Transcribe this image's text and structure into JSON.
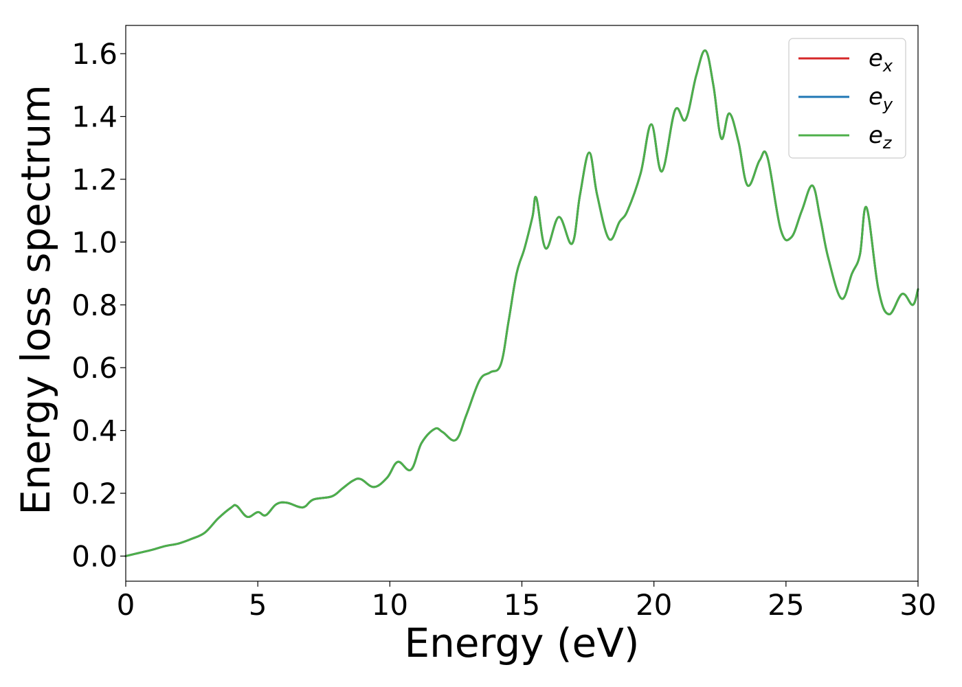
{
  "chart_data": {
    "type": "line",
    "title": "",
    "xlabel": "Energy (eV)",
    "ylabel": "Energy loss spectrum",
    "xlim": [
      0,
      30
    ],
    "ylim": [
      -0.08,
      1.69
    ],
    "xticks": [
      0,
      5,
      10,
      15,
      20,
      25,
      30
    ],
    "xtick_labels": [
      "0",
      "5",
      "10",
      "15",
      "20",
      "25",
      "30"
    ],
    "yticks": [
      0.0,
      0.2,
      0.4,
      0.6,
      0.8,
      1.0,
      1.2,
      1.4,
      1.6
    ],
    "ytick_labels": [
      "0.0",
      "0.2",
      "0.4",
      "0.6",
      "0.8",
      "1.0",
      "1.2",
      "1.4",
      "1.6"
    ],
    "grid": false,
    "legend_position": "top-right",
    "legend": [
      {
        "base": "e",
        "sub": "x",
        "color": "#d62728"
      },
      {
        "base": "e",
        "sub": "y",
        "color": "#1f77b4"
      },
      {
        "base": "e",
        "sub": "z",
        "color": "#4daf4a"
      }
    ],
    "x": [
      0,
      0.5,
      1.0,
      1.5,
      2.0,
      2.5,
      3.0,
      3.5,
      4.0,
      4.2,
      4.6,
      5.0,
      5.3,
      5.7,
      6.1,
      6.7,
      7.1,
      7.8,
      8.2,
      8.6,
      8.9,
      9.4,
      9.9,
      10.3,
      10.8,
      11.2,
      11.7,
      12.0,
      12.5,
      12.9,
      13.4,
      13.8,
      14.2,
      14.5,
      14.8,
      15.1,
      15.4,
      15.55,
      15.9,
      16.4,
      16.9,
      17.2,
      17.55,
      17.85,
      18.3,
      18.7,
      19.0,
      19.5,
      19.9,
      20.3,
      20.8,
      21.2,
      21.6,
      21.95,
      22.25,
      22.55,
      22.85,
      23.2,
      23.55,
      24.0,
      24.3,
      24.8,
      25.2,
      25.6,
      26.0,
      26.3,
      26.6,
      27.1,
      27.5,
      27.8,
      28.05,
      28.5,
      28.9,
      29.4,
      29.8,
      30.0
    ],
    "series": [
      {
        "name": "e_x",
        "values": [
          0.0,
          0.01,
          0.02,
          0.032,
          0.04,
          0.055,
          0.075,
          0.12,
          0.155,
          0.16,
          0.125,
          0.14,
          0.13,
          0.165,
          0.17,
          0.155,
          0.18,
          0.19,
          0.215,
          0.24,
          0.245,
          0.22,
          0.25,
          0.3,
          0.275,
          0.36,
          0.405,
          0.395,
          0.37,
          0.45,
          0.56,
          0.585,
          0.61,
          0.75,
          0.9,
          0.98,
          1.08,
          1.14,
          0.98,
          1.08,
          0.995,
          1.15,
          1.285,
          1.15,
          1.01,
          1.065,
          1.1,
          1.22,
          1.375,
          1.225,
          1.42,
          1.39,
          1.53,
          1.61,
          1.5,
          1.33,
          1.41,
          1.32,
          1.18,
          1.26,
          1.27,
          1.04,
          1.015,
          1.1,
          1.18,
          1.075,
          0.95,
          0.82,
          0.9,
          0.96,
          1.11,
          0.85,
          0.77,
          0.835,
          0.8,
          0.85
        ]
      },
      {
        "name": "e_y",
        "values": [
          0.0,
          0.01,
          0.02,
          0.032,
          0.04,
          0.055,
          0.075,
          0.12,
          0.155,
          0.16,
          0.125,
          0.14,
          0.13,
          0.165,
          0.17,
          0.155,
          0.18,
          0.19,
          0.215,
          0.24,
          0.245,
          0.22,
          0.25,
          0.3,
          0.275,
          0.36,
          0.405,
          0.395,
          0.37,
          0.45,
          0.56,
          0.585,
          0.61,
          0.75,
          0.9,
          0.98,
          1.08,
          1.14,
          0.98,
          1.08,
          0.995,
          1.15,
          1.285,
          1.15,
          1.01,
          1.065,
          1.1,
          1.22,
          1.375,
          1.225,
          1.42,
          1.39,
          1.53,
          1.61,
          1.5,
          1.33,
          1.41,
          1.32,
          1.18,
          1.26,
          1.27,
          1.04,
          1.015,
          1.1,
          1.18,
          1.075,
          0.95,
          0.82,
          0.9,
          0.96,
          1.11,
          0.85,
          0.77,
          0.835,
          0.8,
          0.85
        ]
      },
      {
        "name": "e_z",
        "values": [
          0.0,
          0.01,
          0.02,
          0.032,
          0.04,
          0.055,
          0.075,
          0.12,
          0.155,
          0.16,
          0.125,
          0.14,
          0.13,
          0.165,
          0.17,
          0.155,
          0.18,
          0.19,
          0.215,
          0.24,
          0.245,
          0.22,
          0.25,
          0.3,
          0.275,
          0.36,
          0.405,
          0.395,
          0.37,
          0.45,
          0.56,
          0.585,
          0.61,
          0.75,
          0.9,
          0.98,
          1.08,
          1.14,
          0.98,
          1.08,
          0.995,
          1.15,
          1.285,
          1.15,
          1.01,
          1.065,
          1.1,
          1.22,
          1.375,
          1.225,
          1.42,
          1.39,
          1.53,
          1.61,
          1.5,
          1.33,
          1.41,
          1.32,
          1.18,
          1.26,
          1.27,
          1.04,
          1.015,
          1.1,
          1.18,
          1.075,
          0.95,
          0.82,
          0.9,
          0.96,
          1.11,
          0.85,
          0.77,
          0.835,
          0.8,
          0.85
        ]
      }
    ]
  }
}
